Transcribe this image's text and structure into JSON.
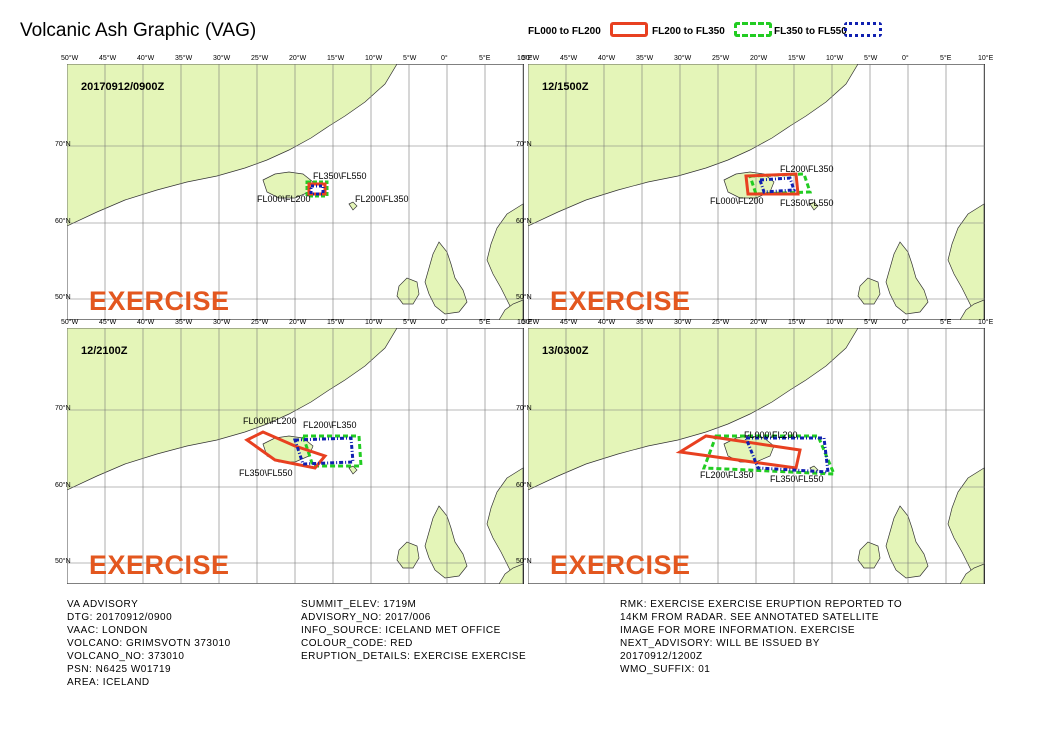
{
  "title": "Volcanic Ash Graphic (VAG)",
  "legend": [
    {
      "label": "FL000 to FL200",
      "color": "#e84020",
      "style": "solid"
    },
    {
      "label": "FL200 to FL350",
      "color": "#22cc22",
      "style": "dashed"
    },
    {
      "label": "FL350 to FL550",
      "color": "#1020b0",
      "style": "dashdot"
    }
  ],
  "top_ticks": [
    "50°W",
    "45°W",
    "40°W",
    "35°W",
    "30°W",
    "25°W",
    "20°W",
    "15°W",
    "10°W",
    "5°W",
    "0°",
    "5°E",
    "10°E"
  ],
  "lat_ticks": [
    "70°N",
    "60°N",
    "50°N"
  ],
  "panels": [
    {
      "time": "20170912/0900Z",
      "exercise": "EXERCISE",
      "labels": [
        "FL350\\FL550",
        "FL000\\FL200",
        "FL200\\FL350"
      ]
    },
    {
      "time": "12/1500Z",
      "exercise": "EXERCISE",
      "labels": [
        "FL200\\FL350",
        "FL000\\FL200",
        "FL350\\FL550"
      ]
    },
    {
      "time": "12/2100Z",
      "exercise": "EXERCISE",
      "labels": [
        "FL000\\FL200",
        "FL200\\FL350",
        "FL350\\FL550"
      ]
    },
    {
      "time": "13/0300Z",
      "exercise": "EXERCISE",
      "labels": [
        "FL000\\FL200",
        "FL200\\FL350",
        "FL350\\FL550"
      ]
    }
  ],
  "advisory": {
    "col1": [
      "VA ADVISORY",
      "DTG: 20170912/0900",
      "VAAC: LONDON",
      "VOLCANO: GRIMSVOTN 373010",
      "VOLCANO_NO: 373010",
      "PSN: N6425 W01719",
      "AREA: ICELAND"
    ],
    "col2": [
      "SUMMIT_ELEV: 1719M",
      "ADVISORY_NO: 2017/006",
      "INFO_SOURCE: ICELAND MET OFFICE",
      "COLOUR_CODE: RED",
      "ERUPTION_DETAILS: EXERCISE EXERCISE"
    ],
    "col3": [
      "RMK: EXERCISE EXERCISE ERUPTION REPORTED TO",
      "14KM FROM RADAR. SEE ANNOTATED SATELLITE",
      "IMAGE FOR MORE INFORMATION. EXERCISE",
      "NEXT_ADVISORY: WILL BE ISSUED BY",
      "20170912/1200Z",
      "WMO_SUFFIX: 01"
    ]
  }
}
